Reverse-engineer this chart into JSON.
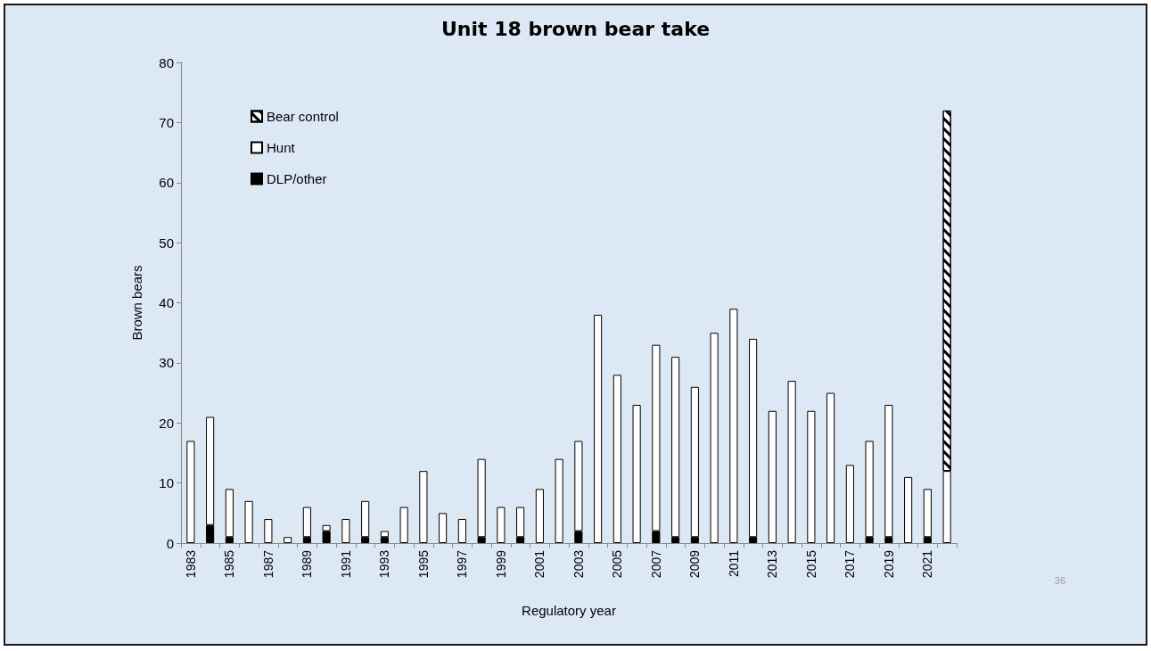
{
  "chart_data": {
    "type": "bar",
    "stacked": true,
    "title": "Unit 18 brown bear take",
    "xlabel": "Regulatory year",
    "ylabel": "Brown bears",
    "categories": [
      "1983",
      null,
      "1985",
      null,
      "1987",
      null,
      "1989",
      null,
      "1991",
      null,
      "1993",
      null,
      "1995",
      null,
      "1997",
      null,
      "1999",
      null,
      "2001",
      null,
      "2003",
      null,
      "2005",
      null,
      "2007",
      null,
      "2009",
      null,
      "2011",
      null,
      "2013",
      null,
      "2015",
      null,
      "2017",
      null,
      "2019",
      null,
      "2021",
      null
    ],
    "series": [
      {
        "name": "DLP/other",
        "color": "#000000",
        "values": [
          0,
          3,
          1,
          0,
          0,
          0,
          1,
          2,
          0,
          1,
          1,
          0,
          0,
          0,
          0,
          1,
          0,
          1,
          0,
          0,
          2,
          0,
          0,
          0,
          2,
          1,
          1,
          0,
          0,
          1,
          0,
          0,
          0,
          0,
          0,
          1,
          1,
          0,
          1,
          0
        ]
      },
      {
        "name": "Hunt",
        "color": "#ffffff",
        "values": [
          17,
          18,
          8,
          7,
          4,
          1,
          5,
          1,
          4,
          6,
          1,
          6,
          12,
          5,
          4,
          13,
          6,
          5,
          9,
          14,
          15,
          38,
          28,
          23,
          31,
          30,
          25,
          35,
          39,
          33,
          22,
          27,
          22,
          25,
          13,
          16,
          22,
          11,
          8,
          12
        ]
      },
      {
        "name": "Bear control",
        "color": "#000000",
        "values": [
          0,
          0,
          0,
          0,
          0,
          0,
          0,
          0,
          0,
          0,
          0,
          0,
          0,
          0,
          0,
          0,
          0,
          0,
          0,
          0,
          0,
          0,
          0,
          0,
          0,
          0,
          0,
          0,
          0,
          0,
          0,
          0,
          0,
          0,
          0,
          0,
          0,
          0,
          0,
          60
        ]
      }
    ],
    "ylim": [
      0,
      80
    ],
    "yticks": [
      0,
      10,
      20,
      30,
      40,
      50,
      60,
      70,
      80
    ],
    "grid": false,
    "legend": "top left",
    "annotations": [
      "36"
    ]
  }
}
